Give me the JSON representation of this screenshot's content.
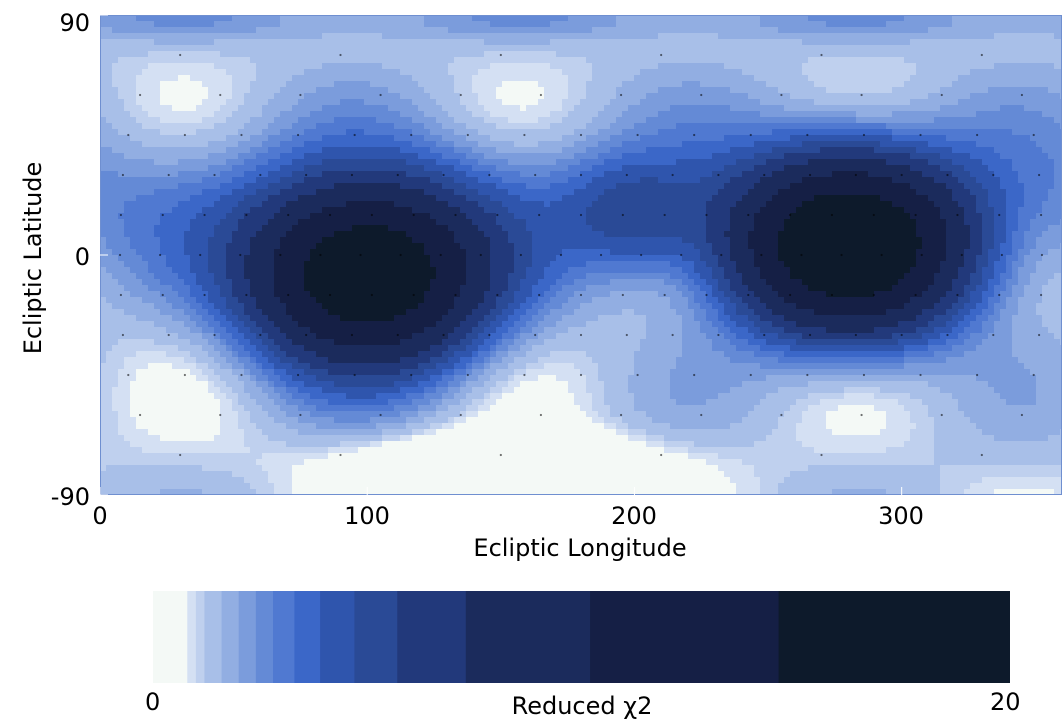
{
  "chart_data": {
    "type": "heatmap",
    "subtype": "filled-contour",
    "xlabel": "Ecliptic Longitude",
    "ylabel": "Ecliptic Latitude",
    "xlim": [
      0,
      360
    ],
    "ylim": [
      -90,
      90
    ],
    "xticks": [
      0,
      100,
      200,
      300
    ],
    "yticks": [
      -90,
      0,
      90
    ],
    "colorbar": {
      "label": "Reduced χ2",
      "min": 0,
      "max": 20,
      "min_label": "0",
      "max_label": "20",
      "levels": [
        0,
        0.8,
        1.0,
        1.2,
        1.6,
        2.0,
        2.4,
        2.8,
        3.3,
        3.9,
        4.7,
        5.7,
        7.3,
        10.2,
        14.6,
        20
      ],
      "colors": [
        "#f4f9f6",
        "#d4e0f3",
        "#bfd0ee",
        "#a8bfe8",
        "#92aee2",
        "#7b9cdc",
        "#648ad6",
        "#5079d1",
        "#3b67c8",
        "#2f55ad",
        "#2a4a96",
        "#22397b",
        "#1b2b5c",
        "#151f45",
        "#0d1a2b"
      ]
    },
    "peaks": [
      {
        "longitude": 100,
        "latitude": -8,
        "reduced_chi2": 20
      },
      {
        "longitude": 280,
        "latitude": 3,
        "reduced_chi2": 20
      }
    ],
    "minimum": {
      "longitude": 150,
      "latitude": -78,
      "reduced_chi2": 0
    },
    "grid": false
  }
}
